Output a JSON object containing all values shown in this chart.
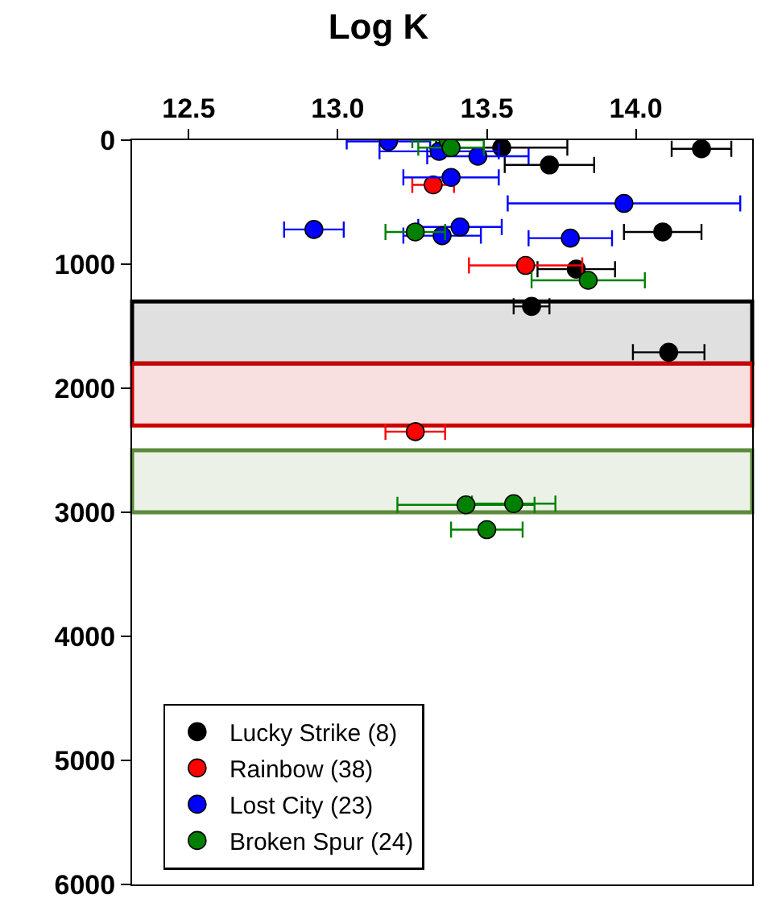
{
  "chart_data": {
    "type": "scatter",
    "title": "Log K",
    "xlim": [
      12.31,
      14.39
    ],
    "xticks": [
      12.5,
      {
        "value": 13,
        "label": "13.0"
      },
      13.5,
      {
        "value": 14,
        "label": "14.0"
      }
    ],
    "ylim": [
      6000,
      0
    ],
    "yticks": [
      0,
      1000,
      2000,
      3000,
      4000,
      5000,
      6000
    ],
    "grid": false,
    "legend": "bottom left",
    "marker": "circle",
    "series": [
      {
        "name": "Lucky Strike (8)",
        "color": "#000000",
        "x": [
          13.55,
          14.22,
          13.71,
          14.09,
          13.8,
          13.65,
          14.11
        ],
        "values": [
          60,
          70,
          200,
          740,
          1040,
          1340,
          1710
        ],
        "xerrors": [
          0.22,
          0.1,
          0.15,
          0.13,
          0.13,
          0.06,
          0.12
        ]
      },
      {
        "name": "Rainbow (38)",
        "color": "#ff0000",
        "x": [
          13.32,
          13.63,
          13.26
        ],
        "values": [
          360,
          1010,
          2350
        ],
        "xerrors": [
          0.07,
          0.19,
          0.1
        ]
      },
      {
        "name": "Lost City (23)",
        "color": "#0000ff",
        "x": [
          13.17,
          13.34,
          13.47,
          13.38,
          13.96,
          12.92,
          13.41,
          13.35,
          13.78
        ],
        "values": [
          10,
          90,
          130,
          300,
          510,
          720,
          700,
          770,
          790
        ],
        "xerrors": [
          0.14,
          0.2,
          0.17,
          0.16,
          0.39,
          0.1,
          0.14,
          0.13,
          0.14
        ]
      },
      {
        "name": "Broken Spur (24)",
        "color": "#008000",
        "x": [
          13.37,
          13.38,
          13.26,
          13.84,
          13.43,
          13.59,
          13.5
        ],
        "values": [
          0,
          60,
          740,
          1130,
          2940,
          2930,
          3140
        ],
        "xerrors": [
          0.12,
          0.11,
          0.1,
          0.19,
          0.23,
          0.14,
          0.12
        ]
      }
    ],
    "bands": [
      {
        "axis": "y",
        "from": 1300,
        "to": 1800,
        "color": "#000000"
      },
      {
        "axis": "y",
        "from": 1800,
        "to": 2300,
        "color": "#cc0000"
      },
      {
        "axis": "y",
        "from": 2500,
        "to": 3000,
        "color": "#5b8a3a"
      }
    ]
  }
}
